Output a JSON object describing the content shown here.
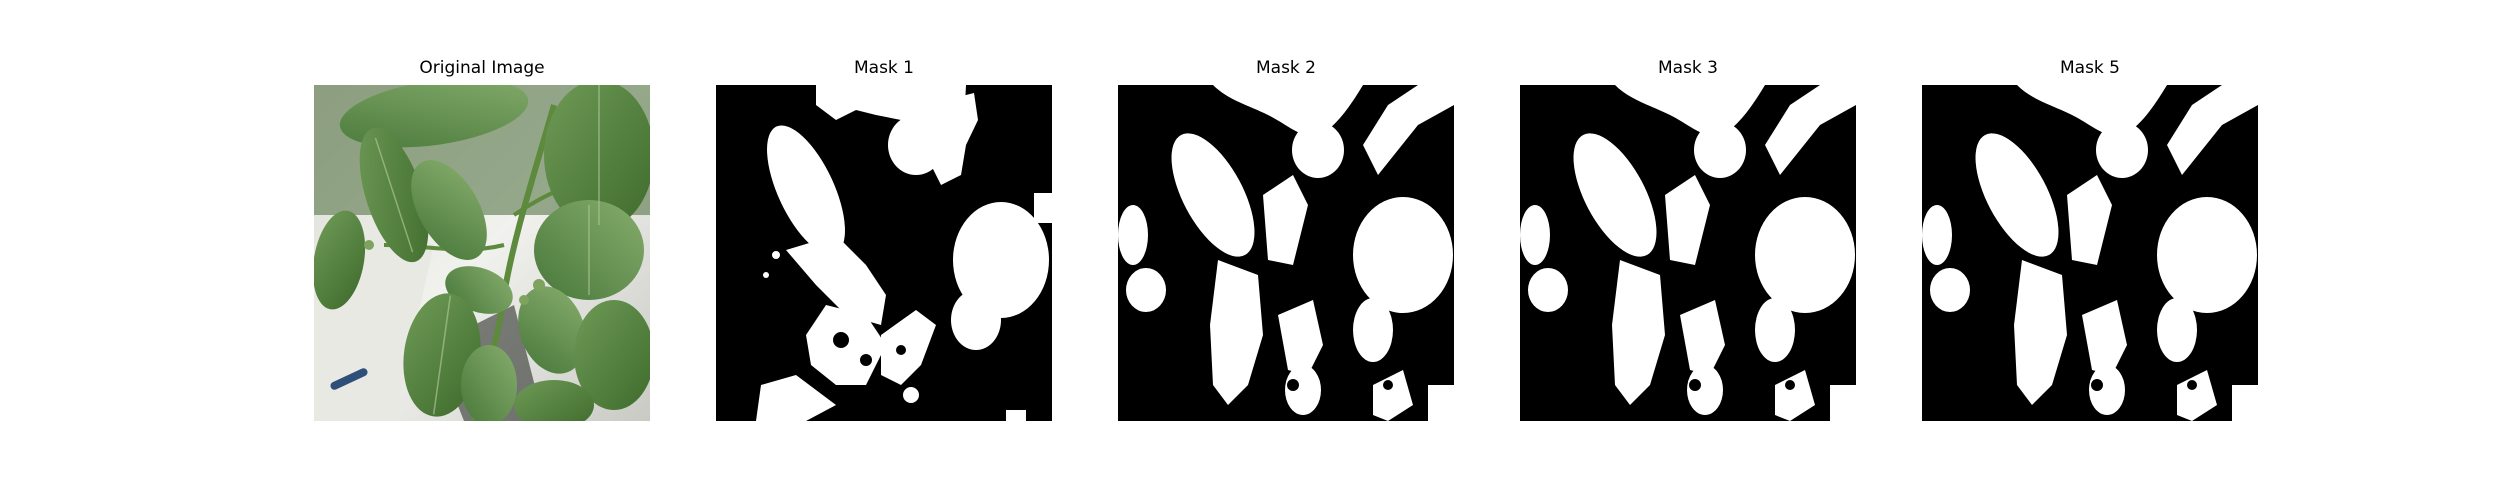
{
  "panels": [
    {
      "title": "Original Image"
    },
    {
      "title": "Mask 1"
    },
    {
      "title": "Mask 2"
    },
    {
      "title": "Mask 3"
    },
    {
      "title": "Mask 5"
    }
  ],
  "colors": {
    "background": "#ffffff",
    "mask_foreground": "#ffffff",
    "mask_background": "#000000",
    "leaf_dark": "#2f5a23",
    "leaf_mid": "#4f7f3a",
    "leaf_light": "#8fb27a",
    "backdrop": "#e6e6e2"
  }
}
